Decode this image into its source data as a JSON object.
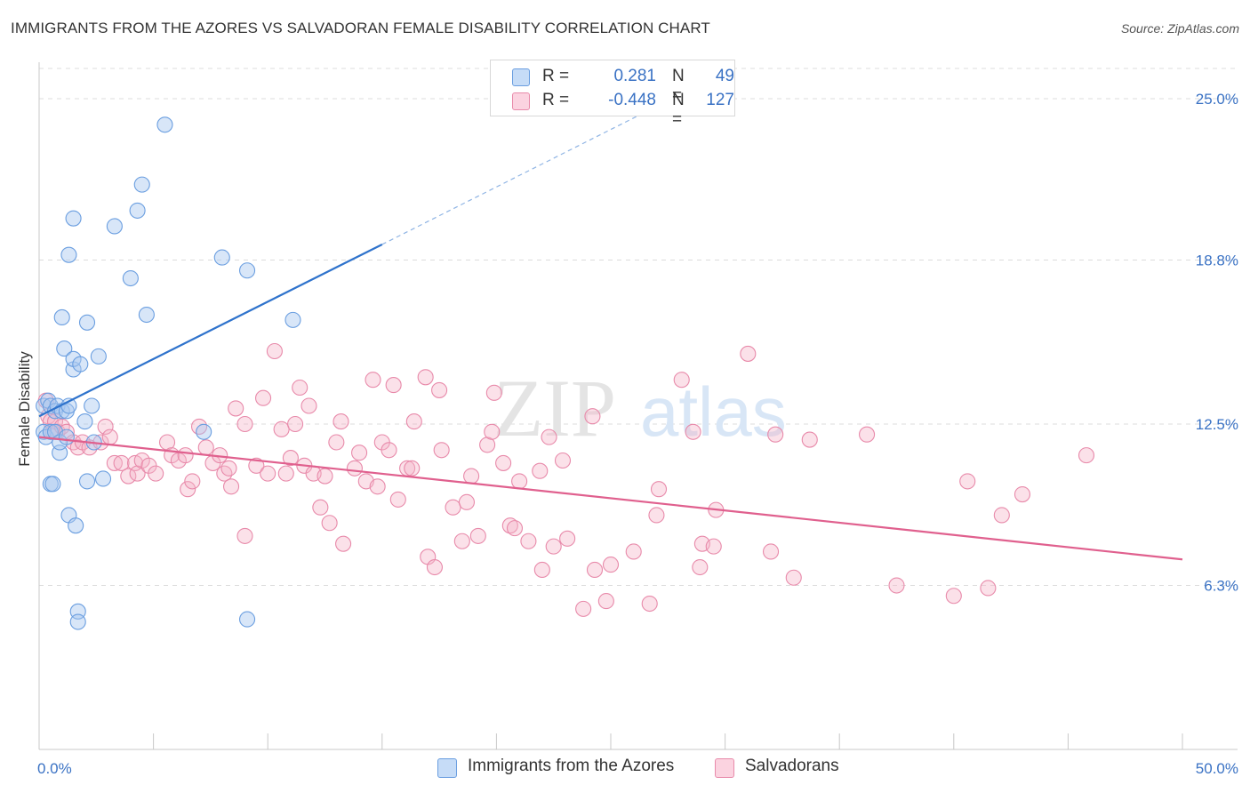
{
  "title": "IMMIGRANTS FROM THE AZORES VS SALVADORAN FEMALE DISABILITY CORRELATION CHART",
  "source": "Source: ZipAtlas.com",
  "watermark": {
    "zip": "ZIP",
    "atlas": "atlas"
  },
  "legend": {
    "r_label": "R =",
    "n_label": "N =",
    "rows": [
      {
        "r": "0.281",
        "n": "49",
        "color": "#a8c8f0"
      },
      {
        "r": "-0.448",
        "n": "127",
        "color": "#f5b3c8"
      }
    ]
  },
  "chart_data": {
    "type": "scatter",
    "title": "IMMIGRANTS FROM THE AZORES VS SALVADORAN FEMALE DISABILITY CORRELATION CHART",
    "xlabel": "",
    "ylabel": "Female Disability",
    "xlim": [
      0,
      50
    ],
    "ylim": [
      0,
      26.4
    ],
    "x_tick_labels": [
      "0.0%",
      "50.0%"
    ],
    "y_ticks": [
      6.3,
      12.5,
      18.8,
      25.0
    ],
    "y_tick_labels": [
      "6.3%",
      "12.5%",
      "18.8%",
      "25.0%"
    ],
    "grid": "horizontal dashed",
    "legend_placement": "bottom-center",
    "series": [
      {
        "name": "Immigrants from the Azores",
        "color": "#a8c8f0",
        "stroke": "#6a9ee0",
        "r": 0.281,
        "n": 49,
        "trend": {
          "x": [
            0,
            15
          ],
          "y": [
            12.8,
            19.4
          ],
          "dashed_to": [
            27,
            24.7
          ]
        },
        "points": [
          [
            0.2,
            13.2
          ],
          [
            0.2,
            12.2
          ],
          [
            0.3,
            12.0
          ],
          [
            0.4,
            13.4
          ],
          [
            0.5,
            13.2
          ],
          [
            0.5,
            12.2
          ],
          [
            0.5,
            10.2
          ],
          [
            0.6,
            10.2
          ],
          [
            0.7,
            13.0
          ],
          [
            0.7,
            12.2
          ],
          [
            0.8,
            13.2
          ],
          [
            0.9,
            11.4
          ],
          [
            0.9,
            11.8
          ],
          [
            1.0,
            16.6
          ],
          [
            1.0,
            13.0
          ],
          [
            1.1,
            15.4
          ],
          [
            1.2,
            12.0
          ],
          [
            1.2,
            13.0
          ],
          [
            1.3,
            19.0
          ],
          [
            1.3,
            13.2
          ],
          [
            1.3,
            9.0
          ],
          [
            1.5,
            14.6
          ],
          [
            1.5,
            15.0
          ],
          [
            1.5,
            20.4
          ],
          [
            1.6,
            8.6
          ],
          [
            1.7,
            5.3
          ],
          [
            1.7,
            4.9
          ],
          [
            1.8,
            14.8
          ],
          [
            2.0,
            12.6
          ],
          [
            2.1,
            16.4
          ],
          [
            2.1,
            10.3
          ],
          [
            2.3,
            13.2
          ],
          [
            2.4,
            11.8
          ],
          [
            2.6,
            15.1
          ],
          [
            2.8,
            10.4
          ],
          [
            3.3,
            20.1
          ],
          [
            4.0,
            18.1
          ],
          [
            4.3,
            20.7
          ],
          [
            4.5,
            21.7
          ],
          [
            4.7,
            16.7
          ],
          [
            5.5,
            24.0
          ],
          [
            7.2,
            12.2
          ],
          [
            8.0,
            18.9
          ],
          [
            9.1,
            18.4
          ],
          [
            9.1,
            5.0
          ],
          [
            11.1,
            16.5
          ]
        ]
      },
      {
        "name": "Salvadorans",
        "color": "#f5b3c8",
        "stroke": "#e88aaa",
        "r": -0.448,
        "n": 127,
        "trend": {
          "x": [
            0,
            50
          ],
          "y": [
            12.0,
            7.3
          ]
        },
        "points": [
          [
            0.3,
            13.4
          ],
          [
            0.4,
            12.8
          ],
          [
            0.5,
            12.6
          ],
          [
            0.6,
            12.2
          ],
          [
            0.7,
            12.6
          ],
          [
            0.8,
            12.2
          ],
          [
            1.0,
            12.4
          ],
          [
            1.2,
            12.2
          ],
          [
            1.5,
            11.8
          ],
          [
            1.7,
            11.6
          ],
          [
            1.9,
            11.8
          ],
          [
            2.2,
            11.6
          ],
          [
            2.7,
            11.8
          ],
          [
            2.9,
            12.4
          ],
          [
            3.1,
            12.0
          ],
          [
            3.3,
            11.0
          ],
          [
            3.6,
            11.0
          ],
          [
            3.9,
            10.5
          ],
          [
            4.2,
            11.0
          ],
          [
            4.3,
            10.6
          ],
          [
            4.5,
            11.1
          ],
          [
            4.8,
            10.9
          ],
          [
            5.1,
            10.6
          ],
          [
            5.6,
            11.8
          ],
          [
            5.8,
            11.3
          ],
          [
            6.1,
            11.1
          ],
          [
            6.4,
            11.3
          ],
          [
            6.5,
            10.0
          ],
          [
            6.7,
            10.3
          ],
          [
            7.0,
            12.4
          ],
          [
            7.3,
            11.6
          ],
          [
            7.6,
            11.0
          ],
          [
            7.9,
            11.3
          ],
          [
            8.1,
            10.6
          ],
          [
            8.3,
            10.8
          ],
          [
            8.4,
            10.1
          ],
          [
            8.6,
            13.1
          ],
          [
            9.0,
            12.5
          ],
          [
            9.0,
            8.2
          ],
          [
            9.5,
            10.9
          ],
          [
            9.8,
            13.5
          ],
          [
            10.0,
            10.6
          ],
          [
            10.3,
            15.3
          ],
          [
            10.6,
            12.3
          ],
          [
            10.8,
            10.6
          ],
          [
            11.0,
            11.2
          ],
          [
            11.2,
            12.5
          ],
          [
            11.4,
            13.9
          ],
          [
            11.6,
            10.9
          ],
          [
            11.8,
            13.2
          ],
          [
            12.0,
            10.6
          ],
          [
            12.3,
            9.3
          ],
          [
            12.5,
            10.5
          ],
          [
            12.7,
            8.7
          ],
          [
            13.0,
            11.8
          ],
          [
            13.2,
            12.6
          ],
          [
            13.3,
            7.9
          ],
          [
            13.8,
            10.8
          ],
          [
            14.0,
            11.4
          ],
          [
            14.3,
            10.3
          ],
          [
            14.6,
            14.2
          ],
          [
            14.8,
            10.1
          ],
          [
            15.0,
            11.8
          ],
          [
            15.3,
            11.5
          ],
          [
            15.5,
            14.0
          ],
          [
            15.7,
            9.6
          ],
          [
            16.1,
            10.8
          ],
          [
            16.3,
            10.8
          ],
          [
            16.4,
            12.6
          ],
          [
            16.9,
            14.3
          ],
          [
            17.0,
            7.4
          ],
          [
            17.3,
            7.0
          ],
          [
            17.5,
            13.8
          ],
          [
            17.6,
            11.5
          ],
          [
            18.1,
            9.3
          ],
          [
            18.5,
            8.0
          ],
          [
            18.7,
            9.5
          ],
          [
            18.9,
            10.5
          ],
          [
            19.2,
            8.2
          ],
          [
            19.6,
            11.7
          ],
          [
            19.8,
            12.2
          ],
          [
            19.9,
            13.7
          ],
          [
            20.3,
            11.0
          ],
          [
            20.6,
            8.6
          ],
          [
            20.8,
            8.5
          ],
          [
            21.0,
            10.3
          ],
          [
            21.4,
            8.0
          ],
          [
            21.9,
            10.7
          ],
          [
            22.0,
            6.9
          ],
          [
            22.3,
            12.0
          ],
          [
            22.5,
            7.8
          ],
          [
            22.9,
            11.1
          ],
          [
            23.1,
            8.1
          ],
          [
            23.8,
            5.4
          ],
          [
            24.2,
            12.8
          ],
          [
            24.3,
            6.9
          ],
          [
            24.8,
            5.7
          ],
          [
            25.0,
            7.1
          ],
          [
            26.0,
            7.6
          ],
          [
            26.7,
            5.6
          ],
          [
            27.0,
            9.0
          ],
          [
            27.1,
            10.0
          ],
          [
            28.1,
            14.2
          ],
          [
            28.6,
            12.2
          ],
          [
            28.9,
            7.0
          ],
          [
            29.0,
            7.9
          ],
          [
            29.5,
            7.8
          ],
          [
            29.6,
            9.2
          ],
          [
            31.0,
            15.2
          ],
          [
            32.0,
            7.6
          ],
          [
            33.0,
            6.6
          ],
          [
            32.2,
            12.1
          ],
          [
            33.7,
            11.9
          ],
          [
            36.2,
            12.1
          ],
          [
            37.5,
            6.3
          ],
          [
            40.0,
            5.9
          ],
          [
            40.6,
            10.3
          ],
          [
            41.5,
            6.2
          ],
          [
            42.1,
            9.0
          ],
          [
            43.0,
            9.8
          ],
          [
            45.8,
            11.3
          ]
        ]
      }
    ]
  },
  "bottom_legend": [
    "Immigrants from the Azores",
    "Salvadorans"
  ]
}
